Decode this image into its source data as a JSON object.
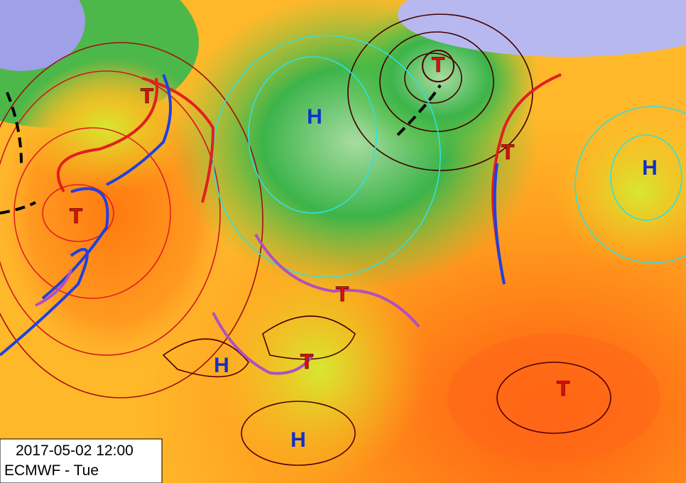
{
  "pressure_centers": [
    {
      "label": "T"
    },
    {
      "label": "T"
    },
    {
      "label": "H"
    },
    {
      "label": "T"
    },
    {
      "label": "T"
    },
    {
      "label": "H"
    },
    {
      "label": "T"
    },
    {
      "label": "T"
    },
    {
      "label": "H"
    },
    {
      "label": "H"
    },
    {
      "label": "T"
    }
  ],
  "info_box": {
    "timestamp": "2017-05-02 12:00",
    "model": "ECMWF - Tue"
  }
}
